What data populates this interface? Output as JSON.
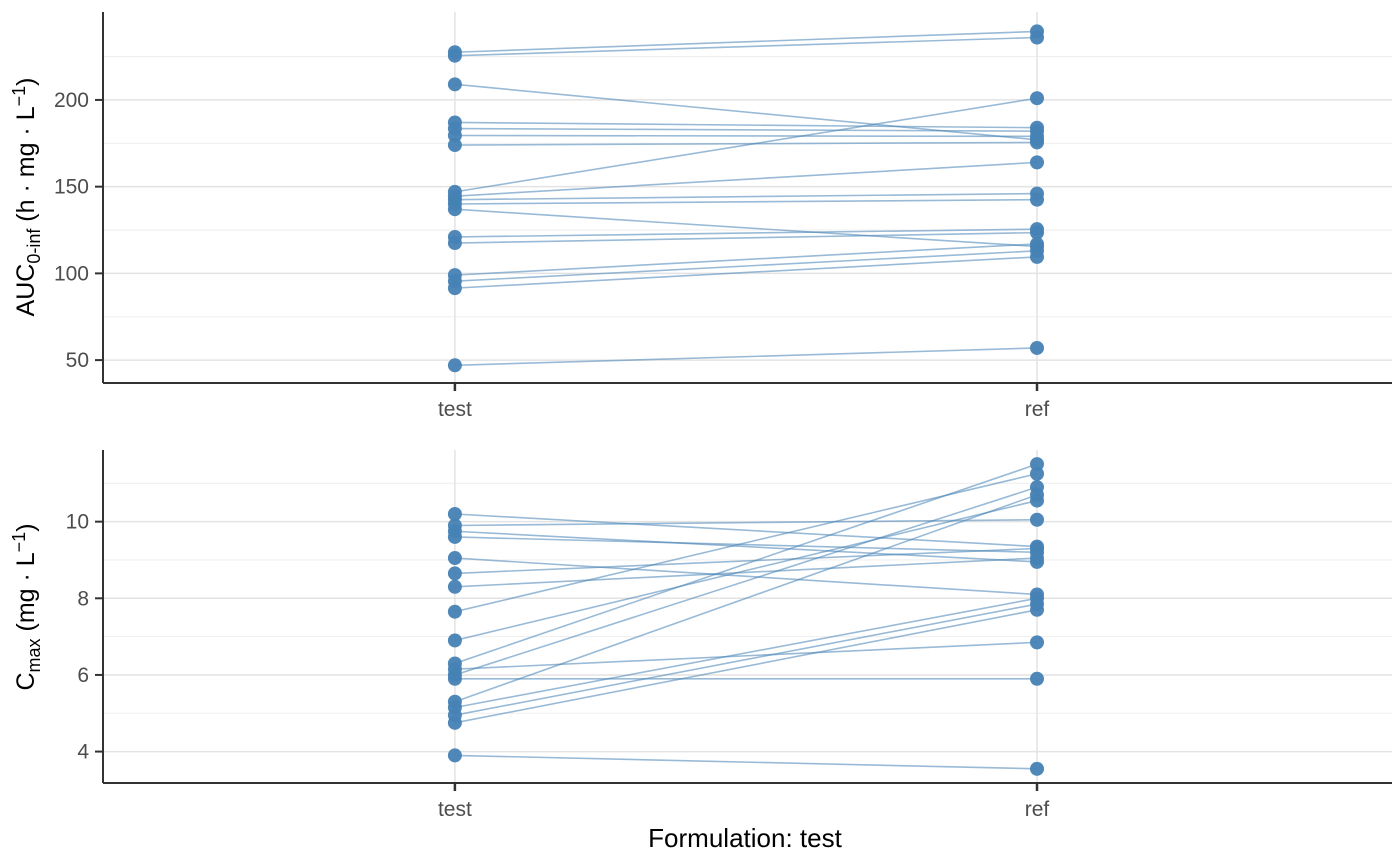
{
  "figure": {
    "xlabel": "Formulation: test",
    "categories": [
      "test",
      "ref"
    ]
  },
  "style": {
    "point_color": "#4682B4",
    "line_color": "#4682B4",
    "grid_major": "#E3E3E3",
    "grid_minor": "#EFEFEF",
    "axis_line": "#333333",
    "tick_text": "#4D4D4D",
    "title_text": "#000000"
  },
  "chart_data": [
    {
      "type": "line",
      "panel": "auc",
      "title": "",
      "ylabel": {
        "prefix": "AUC",
        "sub": "0-inf",
        "mid": "  (h · mg · L",
        "sup": "−1",
        "suffix": ")"
      },
      "categories": [
        "test",
        "ref"
      ],
      "yticks": [
        50,
        100,
        150,
        200
      ],
      "minor_gridlines": [
        75,
        125,
        175,
        225
      ],
      "ylim": [
        36.8,
        250.7
      ],
      "grid": true,
      "legend": false,
      "pairs": [
        [
          227.5,
          239.5
        ],
        [
          225.5,
          236.0
        ],
        [
          209.0,
          177.0
        ],
        [
          187.0,
          184.0
        ],
        [
          183.5,
          182.0
        ],
        [
          179.5,
          179.0
        ],
        [
          174.0,
          175.5
        ],
        [
          147.0,
          201.0
        ],
        [
          144.5,
          164.0
        ],
        [
          142.5,
          146.0
        ],
        [
          140.0,
          142.5
        ],
        [
          137.0,
          115.5
        ],
        [
          121.0,
          125.5
        ],
        [
          117.5,
          123.5
        ],
        [
          99.0,
          117.0
        ],
        [
          95.5,
          113.0
        ],
        [
          91.5,
          109.5
        ],
        [
          47.0,
          57.0
        ]
      ]
    },
    {
      "type": "line",
      "panel": "cmax",
      "title": "",
      "ylabel": {
        "prefix": "C",
        "sub": "max",
        "mid": "  (mg · L",
        "sup": "−1",
        "suffix": ")"
      },
      "categories": [
        "test",
        "ref"
      ],
      "yticks": [
        4,
        6,
        8,
        10
      ],
      "minor_gridlines": [
        5,
        7,
        9,
        11
      ],
      "ylim": [
        3.18,
        11.87
      ],
      "grid": true,
      "legend": false,
      "pairs": [
        [
          10.2,
          9.35
        ],
        [
          9.9,
          10.05
        ],
        [
          9.75,
          8.95
        ],
        [
          9.6,
          9.2
        ],
        [
          9.05,
          8.1
        ],
        [
          8.65,
          9.3
        ],
        [
          8.3,
          9.05
        ],
        [
          7.65,
          11.25
        ],
        [
          6.9,
          10.55
        ],
        [
          6.3,
          11.5
        ],
        [
          6.15,
          6.85
        ],
        [
          6.0,
          10.9
        ],
        [
          5.9,
          5.9
        ],
        [
          5.3,
          10.7
        ],
        [
          5.15,
          8.0
        ],
        [
          4.95,
          7.85
        ],
        [
          4.75,
          7.7
        ],
        [
          3.9,
          3.55
        ]
      ]
    }
  ]
}
